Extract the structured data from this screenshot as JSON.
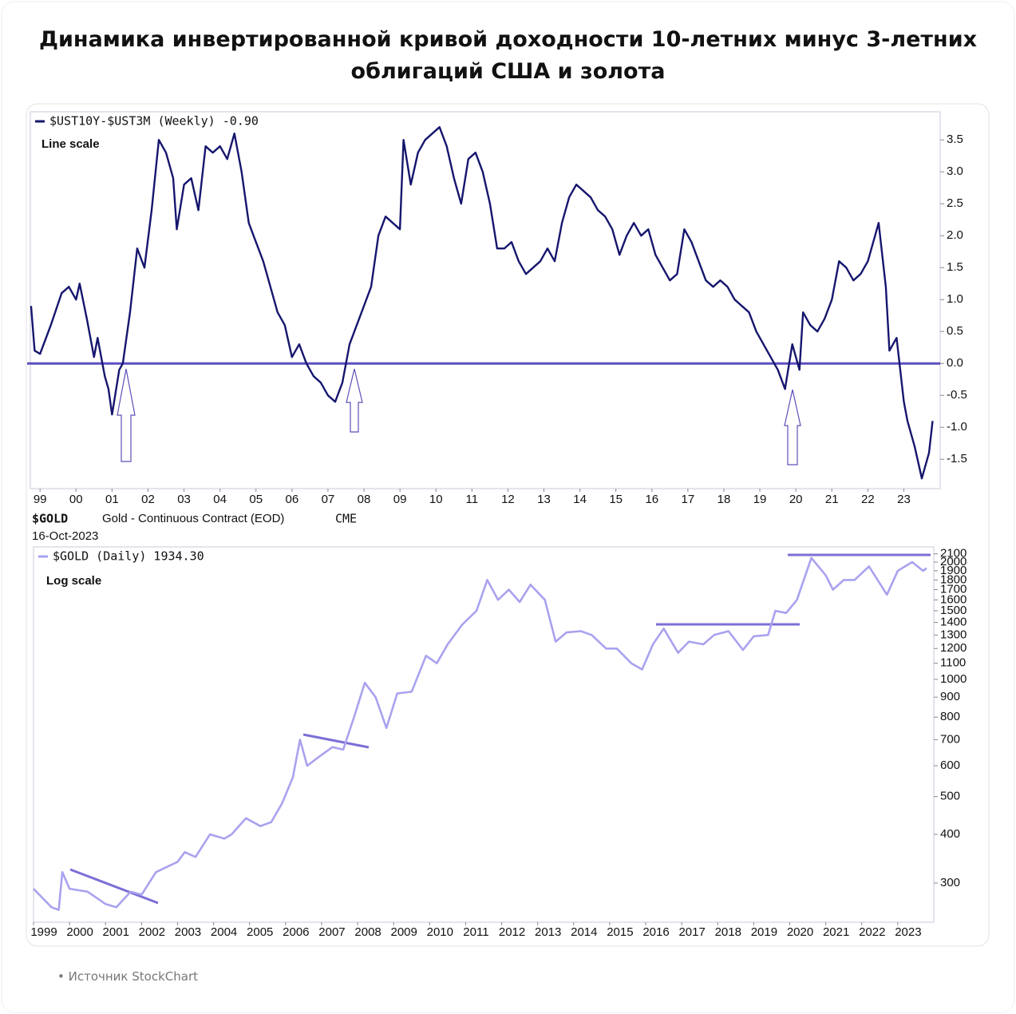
{
  "title": "Динамика инвертированной кривой доходности 10-летних минус 3-летних облигаций США и золота",
  "source": "Источник StockChart",
  "chart_data": [
    {
      "type": "line",
      "annotation": "Line scale",
      "zero_line": true,
      "x": [
        1998.75,
        1998.85,
        1999.0,
        1999.3,
        1999.6,
        1999.8,
        2000.0,
        2000.1,
        2000.3,
        2000.5,
        2000.6,
        2000.8,
        2000.9,
        2001.0,
        2001.2,
        2001.3,
        2001.5,
        2001.7,
        2001.9,
        2002.1,
        2002.3,
        2002.5,
        2002.7,
        2002.8,
        2003.0,
        2003.2,
        2003.4,
        2003.6,
        2003.8,
        2004.0,
        2004.2,
        2004.4,
        2004.6,
        2004.8,
        2005.0,
        2005.2,
        2005.4,
        2005.6,
        2005.8,
        2006.0,
        2006.2,
        2006.4,
        2006.6,
        2006.8,
        2007.0,
        2007.2,
        2007.4,
        2007.6,
        2007.8,
        2008.0,
        2008.2,
        2008.4,
        2008.6,
        2008.8,
        2009.0,
        2009.1,
        2009.3,
        2009.5,
        2009.7,
        2009.9,
        2010.1,
        2010.3,
        2010.5,
        2010.7,
        2010.9,
        2011.1,
        2011.3,
        2011.5,
        2011.7,
        2011.9,
        2012.1,
        2012.3,
        2012.5,
        2012.7,
        2012.9,
        2013.1,
        2013.3,
        2013.5,
        2013.7,
        2013.9,
        2014.1,
        2014.3,
        2014.5,
        2014.7,
        2014.9,
        2015.1,
        2015.3,
        2015.5,
        2015.7,
        2015.9,
        2016.1,
        2016.3,
        2016.5,
        2016.7,
        2016.9,
        2017.1,
        2017.3,
        2017.5,
        2017.7,
        2017.9,
        2018.1,
        2018.3,
        2018.5,
        2018.7,
        2018.9,
        2019.1,
        2019.3,
        2019.5,
        2019.7,
        2019.9,
        2020.1,
        2020.2,
        2020.4,
        2020.6,
        2020.8,
        2021.0,
        2021.2,
        2021.4,
        2021.6,
        2021.8,
        2022.0,
        2022.2,
        2022.3,
        2022.5,
        2022.6,
        2022.8,
        2023.0,
        2023.1,
        2023.3,
        2023.5,
        2023.7,
        2023.8
      ],
      "series": [
        {
          "name": "$UST10Y-$UST3M (Weekly) -0.90",
          "color": "#16166e",
          "values": [
            0.9,
            0.2,
            0.15,
            0.6,
            1.1,
            1.2,
            1.0,
            1.25,
            0.7,
            0.1,
            0.4,
            -0.2,
            -0.4,
            -0.8,
            -0.1,
            0.0,
            0.8,
            1.8,
            1.5,
            2.4,
            3.5,
            3.3,
            2.9,
            2.1,
            2.8,
            2.9,
            2.4,
            3.4,
            3.3,
            3.4,
            3.2,
            3.6,
            3.0,
            2.2,
            1.9,
            1.6,
            1.2,
            0.8,
            0.6,
            0.1,
            0.3,
            0.0,
            -0.2,
            -0.3,
            -0.5,
            -0.6,
            -0.3,
            0.3,
            0.6,
            0.9,
            1.2,
            2.0,
            2.3,
            2.2,
            2.1,
            3.5,
            2.8,
            3.3,
            3.5,
            3.6,
            3.7,
            3.4,
            2.9,
            2.5,
            3.2,
            3.3,
            3.0,
            2.5,
            1.8,
            1.8,
            1.9,
            1.6,
            1.4,
            1.5,
            1.6,
            1.8,
            1.6,
            2.2,
            2.6,
            2.8,
            2.7,
            2.6,
            2.4,
            2.3,
            2.1,
            1.7,
            2.0,
            2.2,
            2.0,
            2.1,
            1.7,
            1.5,
            1.3,
            1.4,
            2.1,
            1.9,
            1.6,
            1.3,
            1.2,
            1.3,
            1.2,
            1.0,
            0.9,
            0.8,
            0.5,
            0.3,
            0.1,
            -0.1,
            -0.4,
            0.3,
            -0.1,
            0.8,
            0.6,
            0.5,
            0.7,
            1.0,
            1.6,
            1.5,
            1.3,
            1.4,
            1.6,
            2.0,
            2.2,
            1.2,
            0.2,
            0.4,
            -0.6,
            -0.9,
            -1.3,
            -1.8,
            -1.4,
            -0.9
          ]
        }
      ],
      "xlim": [
        1998.73,
        2024.01
      ],
      "ylim": [
        -1.96,
        3.94
      ],
      "xticks": [
        {
          "value": 1999,
          "label": "99"
        },
        {
          "value": 2000,
          "label": "00"
        },
        {
          "value": 2001,
          "label": "01"
        },
        {
          "value": 2002,
          "label": "02"
        },
        {
          "value": 2003,
          "label": "03"
        },
        {
          "value": 2004,
          "label": "04"
        },
        {
          "value": 2005,
          "label": "05"
        },
        {
          "value": 2006,
          "label": "06"
        },
        {
          "value": 2007,
          "label": "07"
        },
        {
          "value": 2008,
          "label": "08"
        },
        {
          "value": 2009,
          "label": "09"
        },
        {
          "value": 2010,
          "label": "10"
        },
        {
          "value": 2011,
          "label": "11"
        },
        {
          "value": 2012,
          "label": "12"
        },
        {
          "value": 2013,
          "label": "13"
        },
        {
          "value": 2014,
          "label": "14"
        },
        {
          "value": 2015,
          "label": "15"
        },
        {
          "value": 2016,
          "label": "16"
        },
        {
          "value": 2017,
          "label": "17"
        },
        {
          "value": 2018,
          "label": "18"
        },
        {
          "value": 2019,
          "label": "19"
        },
        {
          "value": 2020,
          "label": "20"
        },
        {
          "value": 2021,
          "label": "21"
        },
        {
          "value": 2022,
          "label": "22"
        },
        {
          "value": 2023,
          "label": "23"
        }
      ],
      "yticks": [
        3.5,
        {
          "value": 3,
          "label": "3.0"
        },
        2.5,
        {
          "value": 2,
          "label": "2.0"
        },
        1.5,
        {
          "value": 1,
          "label": "1.0"
        },
        0.5,
        {
          "value": 0,
          "label": "0.0"
        },
        -0.5,
        {
          "value": -1,
          "label": "-1.0"
        },
        -1.5
      ]
    },
    {
      "type": "line",
      "log_scale": true,
      "symbol": "$GOLD",
      "subtitle": "Gold - Continuous Contract (EOD)",
      "exchange": "CME",
      "date": "16-Oct-2023",
      "annotation": "Log scale",
      "x": [
        1999.0,
        1999.5,
        1999.7,
        1999.8,
        2000.0,
        2000.5,
        2001.0,
        2001.3,
        2001.7,
        2002.0,
        2002.4,
        2003.0,
        2003.2,
        2003.5,
        2003.9,
        2004.3,
        2004.5,
        2004.9,
        2005.3,
        2005.6,
        2005.9,
        2006.2,
        2006.4,
        2006.6,
        2006.9,
        2007.3,
        2007.6,
        2007.9,
        2008.2,
        2008.5,
        2008.8,
        2009.1,
        2009.5,
        2009.9,
        2010.2,
        2010.5,
        2010.9,
        2011.3,
        2011.6,
        2011.9,
        2012.2,
        2012.5,
        2012.8,
        2013.2,
        2013.5,
        2013.8,
        2014.2,
        2014.5,
        2014.9,
        2015.2,
        2015.6,
        2015.9,
        2016.2,
        2016.5,
        2016.9,
        2017.2,
        2017.6,
        2017.9,
        2018.3,
        2018.7,
        2019.0,
        2019.4,
        2019.6,
        2019.9,
        2020.2,
        2020.6,
        2021.0,
        2021.2,
        2021.5,
        2021.8,
        2022.2,
        2022.7,
        2023.0,
        2023.4,
        2023.7,
        2023.8
      ],
      "series": [
        {
          "name": "$GOLD (Daily) 1934.30",
          "color": "#a9a2ef",
          "values": [
            290,
            260,
            256,
            320,
            290,
            285,
            265,
            260,
            285,
            280,
            320,
            340,
            360,
            350,
            400,
            390,
            400,
            440,
            420,
            430,
            480,
            560,
            700,
            600,
            630,
            670,
            660,
            800,
            980,
            900,
            750,
            920,
            930,
            1150,
            1100,
            1230,
            1380,
            1500,
            1800,
            1600,
            1700,
            1580,
            1750,
            1600,
            1250,
            1320,
            1330,
            1300,
            1200,
            1200,
            1100,
            1060,
            1230,
            1350,
            1170,
            1250,
            1230,
            1300,
            1330,
            1190,
            1290,
            1300,
            1500,
            1480,
            1600,
            2050,
            1850,
            1700,
            1800,
            1800,
            1950,
            1650,
            1900,
            2000,
            1900,
            1930
          ]
        }
      ],
      "xlim": [
        1999.0,
        2024.0
      ],
      "ylim": [
        238,
        2188
      ],
      "xticks": [
        1999,
        2000,
        2001,
        2002,
        2003,
        2004,
        2005,
        2006,
        2007,
        2008,
        2009,
        2010,
        2011,
        2012,
        2013,
        2014,
        2015,
        2016,
        2017,
        2018,
        2019,
        2020,
        2021,
        2022,
        2023
      ],
      "yticks": [
        300,
        400,
        500,
        600,
        700,
        800,
        900,
        1000,
        1100,
        1200,
        1300,
        1400,
        1500,
        1600,
        1700,
        1800,
        1900,
        2000,
        2100
      ]
    }
  ]
}
